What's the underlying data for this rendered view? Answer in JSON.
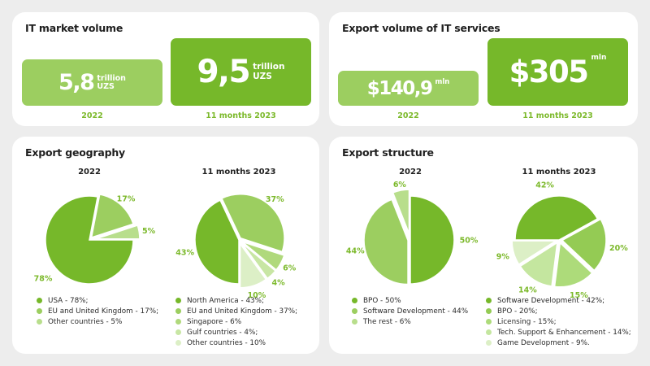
{
  "market_card": {
    "title": "IT market volume",
    "box_2022": {
      "value": "5,8",
      "unit_line1": "trillion",
      "unit_line2": "UZS",
      "caption": "2022"
    },
    "box_2023": {
      "value": "9,5",
      "unit_line1": "trillion",
      "unit_line2": "UZS",
      "caption": "11 months 2023"
    }
  },
  "export_volume_card": {
    "title": "Export volume of IT services",
    "box_2022": {
      "value": "$140,9",
      "unit": "mln",
      "caption": "2022"
    },
    "box_2023": {
      "value": "$305",
      "unit": "mln",
      "caption": "11 months 2023"
    }
  },
  "geography_card": {
    "title": "Export geography"
  },
  "structure_card": {
    "title": "Export structure"
  },
  "chart_data": [
    {
      "type": "pie",
      "title": "2022",
      "group": "Export geography",
      "categories": [
        "USA",
        "EU and United Kingdom",
        "Other countries"
      ],
      "values": [
        78,
        17,
        5
      ],
      "value_labels": [
        "78%",
        "17%",
        "5%"
      ],
      "legend": [
        "USA - 78%;",
        "EU and United Kingdom - 17%;",
        "Other countries - 5%"
      ],
      "colors": [
        "#76b82a",
        "#9cce60",
        "#b8de8c"
      ]
    },
    {
      "type": "pie",
      "title": "11 months 2023",
      "group": "Export geography",
      "categories": [
        "North America",
        "EU and United Kingdom",
        "Singapore",
        "Gulf countries",
        "Other countries"
      ],
      "values": [
        43,
        37,
        6,
        4,
        10
      ],
      "value_labels": [
        "43%",
        "37%",
        "6%",
        "4%",
        "10%"
      ],
      "legend": [
        "North America - 43%;",
        "EU and United Kingdom - 37%;",
        "Singapore - 6%",
        "Gulf countries - 4%;",
        "Other countries - 10%"
      ],
      "colors": [
        "#76b82a",
        "#9cce60",
        "#b0d97c",
        "#c8e6a4",
        "#dcefc6"
      ]
    },
    {
      "type": "pie",
      "title": "2022",
      "group": "Export structure",
      "categories": [
        "BPO",
        "Software Development",
        "The rest"
      ],
      "values": [
        50,
        44,
        6
      ],
      "value_labels": [
        "50%",
        "44%",
        "6%"
      ],
      "legend": [
        "BPO - 50%",
        "Software Development - 44%",
        "The rest - 6%"
      ],
      "colors": [
        "#76b82a",
        "#9cce60",
        "#b8de8c"
      ]
    },
    {
      "type": "pie",
      "title": "11 months 2023",
      "group": "Export structure",
      "categories": [
        "Software Development",
        "BPO",
        "Licensing",
        "Tech. Support & Enhancement",
        "Game Development"
      ],
      "values": [
        42,
        20,
        15,
        14,
        9
      ],
      "value_labels": [
        "42%",
        "20%",
        "15%",
        "14%",
        "9%"
      ],
      "legend": [
        "Software Development - 42%;",
        "BPO - 20%;",
        "Licensing - 15%;",
        "Tech. Support & Enhancement - 14%;",
        "Game Development - 9%."
      ],
      "colors": [
        "#76b82a",
        "#94cb54",
        "#addb7a",
        "#c4e69f",
        "#dcefc6"
      ]
    }
  ],
  "colors": {
    "accent": "#76b82a",
    "box_light": "#9cce60",
    "label": "#7cb92b"
  }
}
